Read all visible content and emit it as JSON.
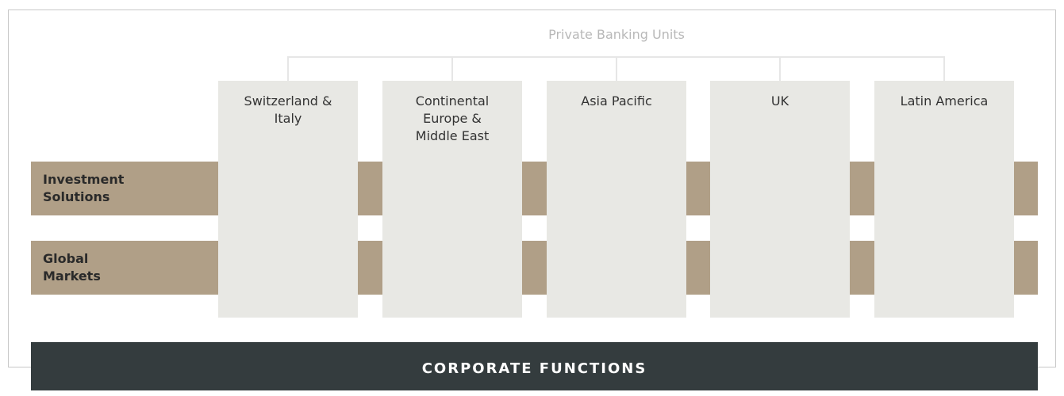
{
  "title": "Private Banking Units",
  "units": [
    {
      "lines": [
        "Switzerland &",
        "Italy"
      ]
    },
    {
      "lines": [
        "Continental",
        "Europe &",
        "Middle East"
      ]
    },
    {
      "lines": [
        "Asia Pacific"
      ]
    },
    {
      "lines": [
        "UK"
      ]
    },
    {
      "lines": [
        "Latin America"
      ]
    }
  ],
  "bands": [
    {
      "lines": [
        "Investment",
        "Solutions"
      ]
    },
    {
      "lines": [
        "Global",
        "Markets"
      ]
    }
  ],
  "footer": "CORPORATE FUNCTIONS"
}
